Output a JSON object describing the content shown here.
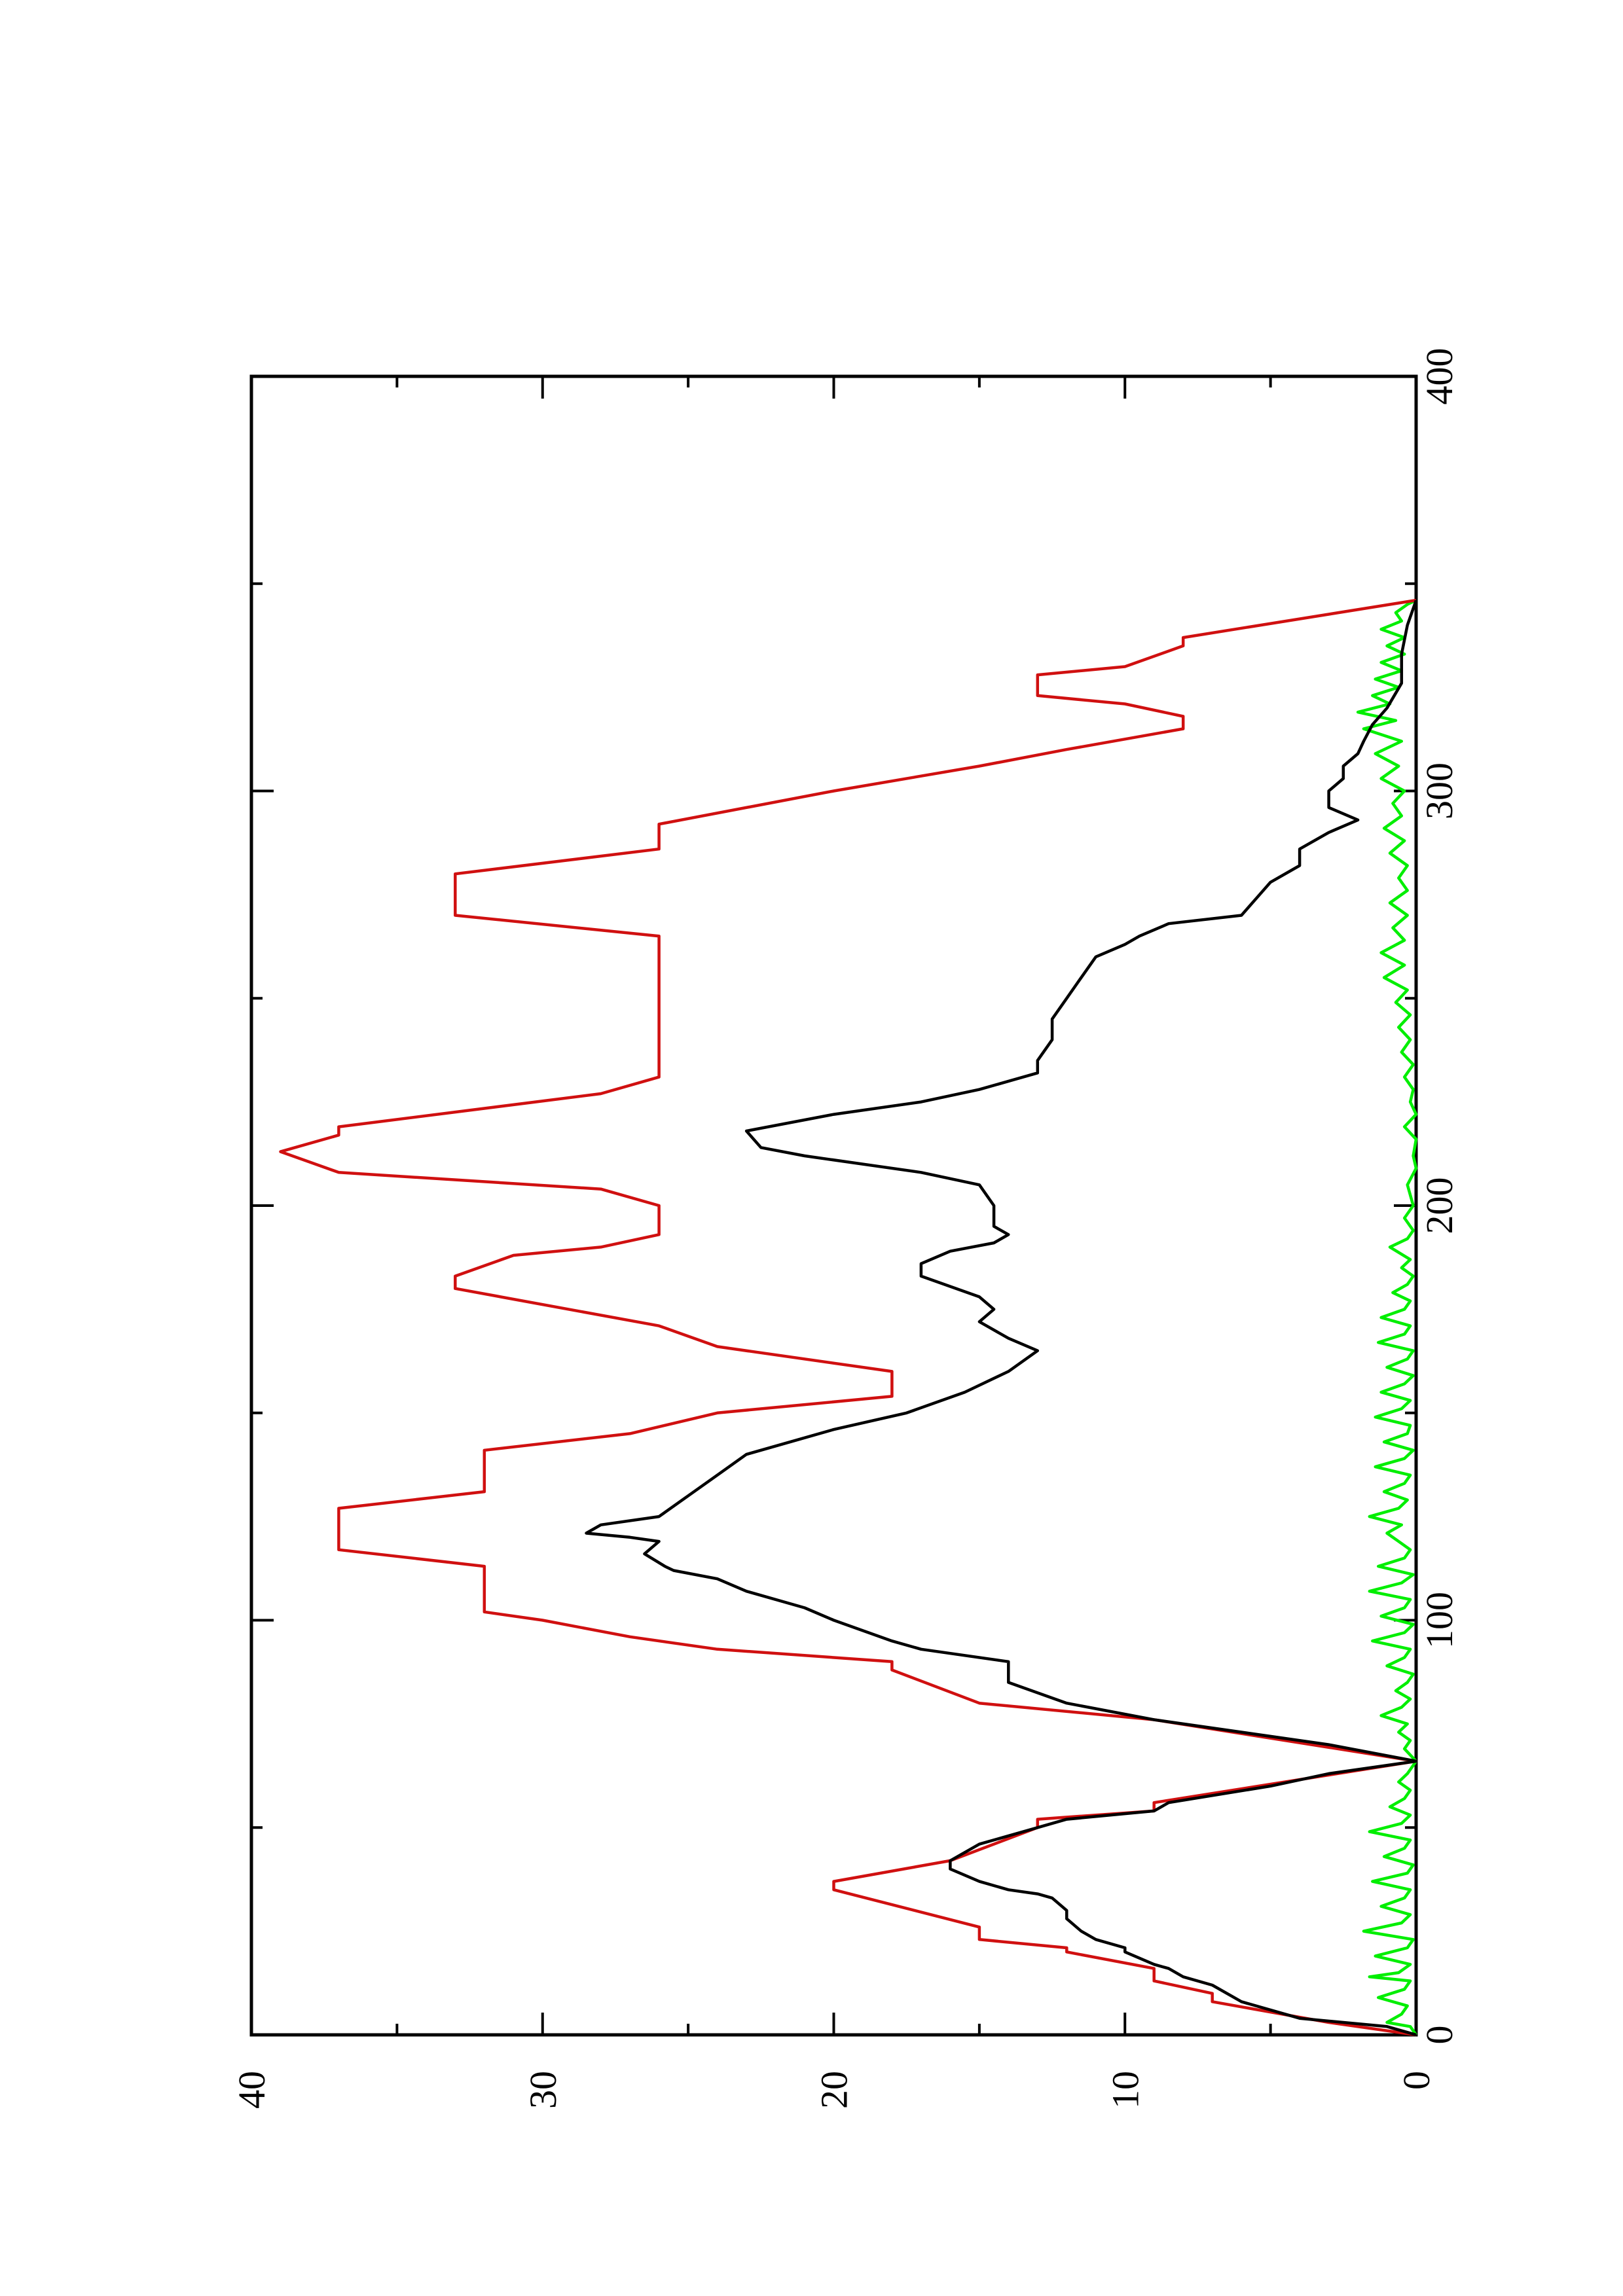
{
  "chart_data": {
    "type": "line",
    "orientation": "rotated-90-counterclockwise",
    "title": "",
    "xlabel": "",
    "ylabel": "",
    "xlim": [
      0,
      400
    ],
    "ylim": [
      0,
      40
    ],
    "x_ticks": [
      0,
      100,
      200,
      300,
      400
    ],
    "x_tick_labels": [
      "0",
      "100",
      "200",
      "300",
      "400"
    ],
    "x_minor_ticks": [
      50,
      150,
      250,
      350
    ],
    "y_ticks": [
      0,
      10,
      20,
      30,
      40
    ],
    "y_tick_labels": [
      "0",
      "10",
      "20",
      "30",
      "40"
    ],
    "y_minor_ticks": [
      5,
      15,
      25,
      35
    ],
    "grid": false,
    "legend": "none",
    "series": [
      {
        "color": "#d01010",
        "points": [
          [
            0,
            0
          ],
          [
            3,
            3
          ],
          [
            8,
            7
          ],
          [
            10,
            7
          ],
          [
            13,
            9
          ],
          [
            16,
            9
          ],
          [
            20,
            12
          ],
          [
            21,
            12
          ],
          [
            23,
            15
          ],
          [
            26,
            15
          ],
          [
            35,
            20
          ],
          [
            37,
            20
          ],
          [
            42,
            16
          ],
          [
            50,
            13
          ],
          [
            52,
            13
          ],
          [
            54,
            9
          ],
          [
            56,
            9
          ],
          [
            66,
            0
          ],
          [
            76,
            9
          ],
          [
            80,
            15
          ],
          [
            88,
            18
          ],
          [
            90,
            18
          ],
          [
            93,
            24
          ],
          [
            96,
            27
          ],
          [
            100,
            30
          ],
          [
            102,
            32
          ],
          [
            113,
            32
          ],
          [
            117,
            37
          ],
          [
            127,
            37
          ],
          [
            131,
            32
          ],
          [
            141,
            32
          ],
          [
            145,
            27
          ],
          [
            150,
            24
          ],
          [
            154,
            18
          ],
          [
            160,
            18
          ],
          [
            166,
            24
          ],
          [
            171,
            26
          ],
          [
            180,
            33
          ],
          [
            183,
            33
          ],
          [
            188,
            31
          ],
          [
            190,
            28
          ],
          [
            193,
            26
          ],
          [
            200,
            26
          ],
          [
            204,
            28
          ],
          [
            208,
            37
          ],
          [
            213,
            39
          ],
          [
            217,
            37
          ],
          [
            219,
            37
          ],
          [
            227,
            28
          ],
          [
            231,
            26
          ],
          [
            265,
            26
          ],
          [
            270,
            33
          ],
          [
            280,
            33
          ],
          [
            286,
            26
          ],
          [
            292,
            26
          ],
          [
            300,
            20
          ],
          [
            306,
            15
          ],
          [
            310,
            12
          ],
          [
            315,
            8
          ],
          [
            318,
            8
          ],
          [
            321,
            10
          ],
          [
            323,
            13
          ],
          [
            328,
            13
          ],
          [
            330,
            10
          ],
          [
            335,
            8
          ],
          [
            337,
            8
          ],
          [
            346,
            0
          ]
        ]
      },
      {
        "color": "#000000",
        "points": [
          [
            0,
            0
          ],
          [
            2,
            1
          ],
          [
            4,
            4
          ],
          [
            8,
            6
          ],
          [
            12,
            7
          ],
          [
            14,
            8
          ],
          [
            16,
            8.5
          ],
          [
            17,
            9
          ],
          [
            20,
            10
          ],
          [
            21,
            10
          ],
          [
            23,
            11
          ],
          [
            25,
            11.5
          ],
          [
            28,
            12
          ],
          [
            30,
            12
          ],
          [
            33,
            12.5
          ],
          [
            34,
            13
          ],
          [
            35,
            14
          ],
          [
            37,
            15
          ],
          [
            40,
            16
          ],
          [
            42,
            16
          ],
          [
            46,
            15
          ],
          [
            50,
            13
          ],
          [
            52,
            12
          ],
          [
            54,
            9
          ],
          [
            56,
            8.5
          ],
          [
            60,
            5
          ],
          [
            63,
            3
          ],
          [
            66,
            0
          ],
          [
            70,
            3
          ],
          [
            76,
            9
          ],
          [
            80,
            12
          ],
          [
            85,
            14
          ],
          [
            90,
            14
          ],
          [
            93,
            17
          ],
          [
            95,
            18
          ],
          [
            100,
            20
          ],
          [
            103,
            21
          ],
          [
            107,
            23
          ],
          [
            110,
            24
          ],
          [
            112,
            25.5
          ],
          [
            113,
            25.8
          ],
          [
            116,
            26.5
          ],
          [
            119,
            26
          ],
          [
            120,
            27
          ],
          [
            121,
            28.5
          ],
          [
            123,
            28
          ],
          [
            125,
            26
          ],
          [
            130,
            25
          ],
          [
            135,
            24
          ],
          [
            140,
            23
          ],
          [
            142,
            22
          ],
          [
            146,
            20
          ],
          [
            150,
            17.5
          ],
          [
            155,
            15.5
          ],
          [
            160,
            14
          ],
          [
            165,
            13
          ],
          [
            168,
            14
          ],
          [
            172,
            15
          ],
          [
            175,
            14.5
          ],
          [
            178,
            15
          ],
          [
            183,
            17
          ],
          [
            186,
            17
          ],
          [
            189,
            16
          ],
          [
            191,
            14.5
          ],
          [
            193,
            14
          ],
          [
            195,
            14.5
          ],
          [
            200,
            14.5
          ],
          [
            205,
            15
          ],
          [
            208,
            17
          ],
          [
            212,
            21
          ],
          [
            214,
            22.5
          ],
          [
            218,
            23
          ],
          [
            222,
            20
          ],
          [
            225,
            17
          ],
          [
            228,
            15
          ],
          [
            232,
            13
          ],
          [
            235,
            13
          ],
          [
            240,
            12.5
          ],
          [
            245,
            12.5
          ],
          [
            250,
            12
          ],
          [
            255,
            11.5
          ],
          [
            260,
            11
          ],
          [
            263,
            10
          ],
          [
            265,
            9.5
          ],
          [
            268,
            8.5
          ],
          [
            270,
            6
          ],
          [
            274,
            5.5
          ],
          [
            278,
            5
          ],
          [
            282,
            4
          ],
          [
            286,
            4
          ],
          [
            290,
            3
          ],
          [
            293,
            2
          ],
          [
            296,
            3
          ],
          [
            300,
            3
          ],
          [
            303,
            2.5
          ],
          [
            306,
            2.5
          ],
          [
            309,
            2
          ],
          [
            312,
            1.8
          ],
          [
            316,
            1.5
          ],
          [
            320,
            1
          ],
          [
            326,
            0.5
          ],
          [
            333,
            0.5
          ],
          [
            340,
            0.3
          ],
          [
            346,
            0
          ]
        ]
      },
      {
        "color": "#00ee00",
        "points": [
          [
            0,
            0
          ],
          [
            2,
            0.2
          ],
          [
            3,
            1
          ],
          [
            5,
            0.5
          ],
          [
            7,
            0.3
          ],
          [
            9,
            1.3
          ],
          [
            11,
            0.4
          ],
          [
            13,
            0.2
          ],
          [
            14,
            1.6
          ],
          [
            15,
            0.6
          ],
          [
            17,
            0.2
          ],
          [
            19,
            1.4
          ],
          [
            21,
            0.3
          ],
          [
            23,
            0.1
          ],
          [
            25,
            1.8
          ],
          [
            27,
            0.5
          ],
          [
            29,
            0.2
          ],
          [
            31,
            1.2
          ],
          [
            33,
            0.4
          ],
          [
            35,
            0.2
          ],
          [
            37,
            1.5
          ],
          [
            39,
            0.3
          ],
          [
            41,
            0.1
          ],
          [
            43,
            1.1
          ],
          [
            45,
            0.4
          ],
          [
            47,
            0.2
          ],
          [
            49,
            1.6
          ],
          [
            51,
            0.5
          ],
          [
            53,
            0.2
          ],
          [
            55,
            0.9
          ],
          [
            57,
            0.4
          ],
          [
            59,
            0.2
          ],
          [
            61,
            0.6
          ],
          [
            63,
            0.3
          ],
          [
            66,
            0
          ],
          [
            69,
            0.4
          ],
          [
            71,
            0.2
          ],
          [
            73,
            0.6
          ],
          [
            75,
            0.3
          ],
          [
            77,
            1.2
          ],
          [
            79,
            0.5
          ],
          [
            81,
            0.2
          ],
          [
            83,
            0.7
          ],
          [
            85,
            0.3
          ],
          [
            87,
            0.1
          ],
          [
            89,
            1.0
          ],
          [
            91,
            0.4
          ],
          [
            93,
            0.2
          ],
          [
            95,
            1.5
          ],
          [
            97,
            0.4
          ],
          [
            99,
            0.1
          ],
          [
            101,
            1.2
          ],
          [
            103,
            0.4
          ],
          [
            105,
            0.2
          ],
          [
            107,
            1.6
          ],
          [
            109,
            0.5
          ],
          [
            111,
            0.1
          ],
          [
            113,
            1.3
          ],
          [
            115,
            0.4
          ],
          [
            117,
            0.2
          ],
          [
            119,
            0.6
          ],
          [
            121,
            1.0
          ],
          [
            123,
            0.5
          ],
          [
            125,
            1.6
          ],
          [
            127,
            0.6
          ],
          [
            129,
            0.3
          ],
          [
            131,
            1.1
          ],
          [
            133,
            0.4
          ],
          [
            135,
            0.2
          ],
          [
            137,
            1.4
          ],
          [
            139,
            0.4
          ],
          [
            141,
            0.1
          ],
          [
            143,
            1.1
          ],
          [
            145,
            0.3
          ],
          [
            147,
            0.2
          ],
          [
            149,
            1.4
          ],
          [
            151,
            0.5
          ],
          [
            153,
            0.2
          ],
          [
            155,
            1.2
          ],
          [
            157,
            0.4
          ],
          [
            159,
            0.1
          ],
          [
            161,
            1.0
          ],
          [
            163,
            0.3
          ],
          [
            165,
            0.1
          ],
          [
            167,
            1.3
          ],
          [
            169,
            0.4
          ],
          [
            171,
            0.2
          ],
          [
            173,
            1.2
          ],
          [
            175,
            0.4
          ],
          [
            177,
            0.2
          ],
          [
            179,
            0.8
          ],
          [
            181,
            0.3
          ],
          [
            183,
            0.1
          ],
          [
            185,
            0.5
          ],
          [
            187,
            0.2
          ],
          [
            190,
            0.9
          ],
          [
            192,
            0.3
          ],
          [
            194,
            0.1
          ],
          [
            197,
            0.4
          ],
          [
            200,
            0.1
          ],
          [
            205,
            0.3
          ],
          [
            209,
            0
          ],
          [
            212,
            0.1
          ],
          [
            216,
            0
          ],
          [
            219,
            0.4
          ],
          [
            222,
            0
          ],
          [
            225,
            0.2
          ],
          [
            228,
            0.1
          ],
          [
            231,
            0.4
          ],
          [
            234,
            0.1
          ],
          [
            237,
            0.5
          ],
          [
            240,
            0.2
          ],
          [
            243,
            0.6
          ],
          [
            246,
            0.2
          ],
          [
            249,
            0.7
          ],
          [
            252,
            0.3
          ],
          [
            255,
            1.1
          ],
          [
            258,
            0.4
          ],
          [
            261,
            1.2
          ],
          [
            264,
            0.4
          ],
          [
            267,
            0.8
          ],
          [
            270,
            0.3
          ],
          [
            273,
            0.9
          ],
          [
            276,
            0.3
          ],
          [
            279,
            0.6
          ],
          [
            282,
            0.3
          ],
          [
            285,
            0.9
          ],
          [
            288,
            0.4
          ],
          [
            291,
            1.1
          ],
          [
            294,
            0.5
          ],
          [
            297,
            0.8
          ],
          [
            300,
            0.4
          ],
          [
            303,
            1.2
          ],
          [
            306,
            0.6
          ],
          [
            309,
            1.4
          ],
          [
            312,
            0.5
          ],
          [
            315,
            1.8
          ],
          [
            317,
            0.7
          ],
          [
            319,
            2.0
          ],
          [
            321,
            0.9
          ],
          [
            323,
            1.5
          ],
          [
            325,
            0.6
          ],
          [
            327,
            1.4
          ],
          [
            329,
            0.5
          ],
          [
            331,
            1.2
          ],
          [
            333,
            0.4
          ],
          [
            335,
            1.0
          ],
          [
            337,
            0.4
          ],
          [
            339,
            1.2
          ],
          [
            341,
            0.5
          ],
          [
            343,
            0.7
          ],
          [
            345,
            0.3
          ],
          [
            346,
            0
          ]
        ]
      }
    ]
  }
}
